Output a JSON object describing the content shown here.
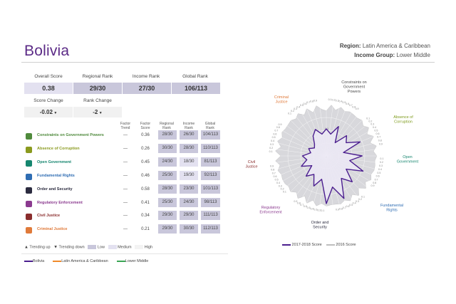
{
  "country": "Bolivia",
  "meta": {
    "region_label": "Region:",
    "region": "Latin America & Caribbean",
    "income_label": "Income Group:",
    "income": "Lower Middle"
  },
  "kpis": {
    "overall_label": "Overall Score",
    "overall": "0.38",
    "regional_label": "Regional Rank",
    "regional": "29/30",
    "income_label": "Income Rank",
    "income": "27/30",
    "global_label": "Global Rank",
    "global": "106/113",
    "score_change_label": "Score Change",
    "score_change": "-0.02",
    "rank_change_label": "Rank Change",
    "rank_change": "-2"
  },
  "table_headers": {
    "trend": "Factor Trend",
    "score": "Factor Score",
    "regional": "Regional Rank",
    "income": "Income Rank",
    "global": "Global Rank"
  },
  "factors": [
    {
      "label": "Constraints on Government Powers",
      "color": "#4f8a3c",
      "icon": "landmark-icon",
      "trend": "—",
      "score": "0.36",
      "regional": "28/30",
      "income": "26/30",
      "global": "104/113",
      "rc": "low",
      "ic": "low",
      "gc": "low"
    },
    {
      "label": "Absence of Corruption",
      "color": "#8a9a1e",
      "icon": "money-bag-icon",
      "trend": "—",
      "score": "0.26",
      "regional": "30/30",
      "income": "28/30",
      "global": "110/113",
      "rc": "low",
      "ic": "low",
      "gc": "low"
    },
    {
      "label": "Open Government",
      "color": "#16866f",
      "icon": "open-book-icon",
      "trend": "—",
      "score": "0.45",
      "regional": "24/30",
      "income": "18/30",
      "global": "81/113",
      "rc": "low",
      "ic": "med",
      "gc": "low"
    },
    {
      "label": "Fundamental Rights",
      "color": "#2f6db3",
      "icon": "people-icon",
      "trend": "—",
      "score": "0.46",
      "regional": "25/30",
      "income": "19/30",
      "global": "92/113",
      "rc": "low",
      "ic": "med",
      "gc": "low"
    },
    {
      "label": "Order and Security",
      "color": "#2b2b3f",
      "icon": "lock-icon",
      "trend": "—",
      "score": "0.58",
      "regional": "28/30",
      "income": "23/30",
      "global": "101/113",
      "rc": "low",
      "ic": "low",
      "gc": "low"
    },
    {
      "label": "Regulatory Enforcement",
      "color": "#8b3a8f",
      "icon": "gavel-icon",
      "trend": "—",
      "score": "0.41",
      "regional": "25/30",
      "income": "24/30",
      "global": "98/113",
      "rc": "low",
      "ic": "low",
      "gc": "low"
    },
    {
      "label": "Civil Justice",
      "color": "#8a2d2d",
      "icon": "scales-icon",
      "trend": "—",
      "score": "0.34",
      "regional": "29/30",
      "income": "29/30",
      "global": "111/113",
      "rc": "low",
      "ic": "low",
      "gc": "low"
    },
    {
      "label": "Criminal Justice",
      "color": "#e07a3a",
      "icon": "handcuffs-icon",
      "trend": "—",
      "score": "0.21",
      "regional": "29/30",
      "income": "30/30",
      "global": "112/113",
      "rc": "low",
      "ic": "low",
      "gc": "low"
    }
  ],
  "key": {
    "up": "Trending up",
    "down": "Trending down",
    "low": "Low",
    "medium": "Medium",
    "high": "High"
  },
  "bottom_legend": [
    {
      "label": "Bolivia",
      "color": "#4b1e8f"
    },
    {
      "label": "Latin America & Caribbean",
      "color": "#f08a2a"
    },
    {
      "label": "Lower Middle",
      "color": "#3aa655"
    }
  ],
  "radar": {
    "categories": [
      {
        "label": "Constraints on\nGovernment\nPowers",
        "color": "#4b4b4b"
      },
      {
        "label": "Absence of\nCorruption",
        "color": "#7d9a1a"
      },
      {
        "label": "Open\nGovernment",
        "color": "#16866f"
      },
      {
        "label": "Fundamental\nRights",
        "color": "#2f6db3"
      },
      {
        "label": "Order and\nSecurity",
        "color": "#2b2b3f"
      },
      {
        "label": "Regulatory\nEnforcement",
        "color": "#8b3a8f"
      },
      {
        "label": "Civil\nJustice",
        "color": "#8a2d2d"
      },
      {
        "label": "Criminal\nJustice",
        "color": "#e07a3a"
      }
    ],
    "ticks": [
      "0.1",
      "0.2",
      "0.3",
      "0.4",
      "0.5",
      "0.6",
      "0.7",
      "0.8",
      "0.9"
    ],
    "center_labels": [
      "0.3",
      "0"
    ],
    "series": [
      {
        "name": "2017-2018 Score",
        "color": "#4b1e8f"
      },
      {
        "name": "2016 Score",
        "color": "#bdbdbd"
      }
    ]
  }
}
